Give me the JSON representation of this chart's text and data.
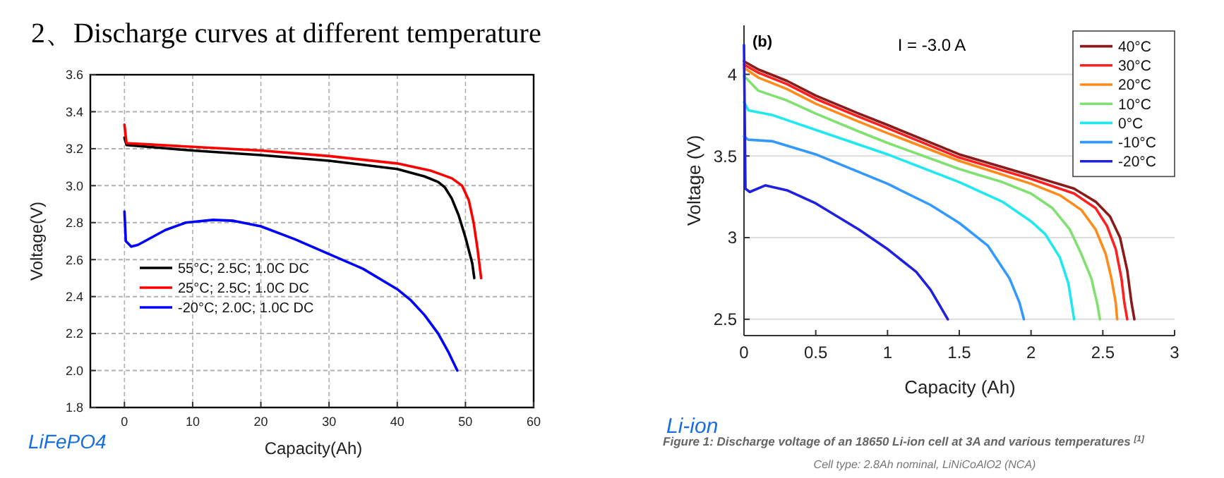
{
  "chart_data": [
    {
      "type": "line",
      "title": "2、Discharge curves at different temperature",
      "xlabel": "Capacity(Ah)",
      "ylabel": "Voltage(V)",
      "xlim": [
        -5,
        60
      ],
      "xticks": [
        0,
        10,
        20,
        30,
        40,
        50,
        60
      ],
      "ylim": [
        1.8,
        3.6
      ],
      "yticks": [
        {
          "value": 1.8,
          "label": "1.8"
        },
        {
          "value": 2,
          "label": "2.0"
        },
        {
          "value": 2.2,
          "label": "2.2"
        },
        {
          "value": 2.4,
          "label": "2.4"
        },
        {
          "value": 2.6,
          "label": "2.6"
        },
        {
          "value": 2.8,
          "label": "2.8"
        },
        {
          "value": 3,
          "label": "3.0"
        },
        {
          "value": 3.2,
          "label": "3.2"
        },
        {
          "value": 3.4,
          "label": "3.4"
        },
        {
          "value": 3.6,
          "label": "3.6"
        }
      ],
      "grid": true,
      "legend": "bottom left",
      "annotations": [
        "LiFePO4"
      ],
      "series": [
        {
          "name": "55°C; 2.5C; 1.0C DC",
          "color": "#000000",
          "x": [
            0,
            0.3,
            5,
            10,
            20,
            30,
            40,
            44,
            46,
            47,
            48,
            49,
            50,
            51,
            51.3
          ],
          "values": [
            3.26,
            3.22,
            3.205,
            3.19,
            3.165,
            3.135,
            3.09,
            3.05,
            3.02,
            2.99,
            2.93,
            2.84,
            2.72,
            2.58,
            2.5
          ]
        },
        {
          "name": "25°C; 2.5C; 1.0C DC",
          "color": "#ff0000",
          "x": [
            0,
            0.3,
            5,
            10,
            20,
            30,
            40,
            45,
            48,
            49.5,
            50.5,
            51.2,
            51.8,
            52.3
          ],
          "values": [
            3.33,
            3.23,
            3.22,
            3.21,
            3.19,
            3.16,
            3.12,
            3.08,
            3.04,
            3.0,
            2.92,
            2.8,
            2.65,
            2.5
          ]
        },
        {
          "name": "-20°C; 2.0C; 1.0C DC",
          "color": "#0000ff",
          "x": [
            0,
            0.2,
            1,
            2,
            4,
            6,
            9,
            13,
            16,
            20,
            25,
            30,
            35,
            40,
            42,
            44,
            46,
            47.5,
            48.8
          ],
          "values": [
            2.86,
            2.7,
            2.67,
            2.68,
            2.72,
            2.76,
            2.8,
            2.815,
            2.81,
            2.78,
            2.71,
            2.63,
            2.55,
            2.44,
            2.38,
            2.3,
            2.2,
            2.1,
            2.0
          ]
        }
      ]
    },
    {
      "type": "line",
      "title": "I = -3.0 A",
      "xlabel": "Capacity (Ah)",
      "ylabel": "Voltage (V)",
      "xlim": [
        0,
        3
      ],
      "xticks": [
        0,
        0.5,
        1,
        1.5,
        2,
        2.5,
        3
      ],
      "ylim": [
        2.4,
        4.3
      ],
      "yticks": [
        2.5,
        3,
        3.5,
        4
      ],
      "grid": "y",
      "legend": "top right",
      "annotations": [
        "(b)",
        "Li-ion",
        "Figure 1: Discharge voltage of an 18650 Li-ion cell at 3A and various temperatures $^{[1]}$",
        "Cell type: 2.8Ah nominal, LiNiCoAlO2 (NCA)"
      ],
      "series": [
        {
          "name": "40°C",
          "color": "#8b1a1a",
          "x": [
            0,
            0.1,
            0.3,
            0.5,
            0.8,
            1,
            1.5,
            2,
            2.3,
            2.45,
            2.55,
            2.62,
            2.67,
            2.7,
            2.72
          ],
          "values": [
            4.08,
            4.03,
            3.96,
            3.87,
            3.76,
            3.69,
            3.51,
            3.38,
            3.3,
            3.22,
            3.13,
            3.0,
            2.8,
            2.6,
            2.5
          ]
        },
        {
          "name": "30°C",
          "color": "#ff2020",
          "x": [
            0,
            0.1,
            0.3,
            0.5,
            0.8,
            1,
            1.5,
            2,
            2.3,
            2.45,
            2.53,
            2.59,
            2.63,
            2.65,
            2.67
          ],
          "values": [
            4.06,
            4.01,
            3.94,
            3.85,
            3.74,
            3.67,
            3.49,
            3.36,
            3.27,
            3.18,
            3.07,
            2.93,
            2.75,
            2.6,
            2.5
          ]
        },
        {
          "name": "20°C",
          "color": "#ff8c1a",
          "x": [
            0,
            0.1,
            0.3,
            0.5,
            0.8,
            1,
            1.5,
            2,
            2.2,
            2.35,
            2.45,
            2.52,
            2.56,
            2.59,
            2.6
          ],
          "values": [
            4.04,
            3.98,
            3.91,
            3.82,
            3.71,
            3.64,
            3.47,
            3.33,
            3.26,
            3.17,
            3.05,
            2.9,
            2.75,
            2.6,
            2.5
          ]
        },
        {
          "name": "10°C",
          "color": "#80e070",
          "x": [
            0,
            0.1,
            0.3,
            0.5,
            0.8,
            1,
            1.5,
            1.8,
            2,
            2.15,
            2.27,
            2.35,
            2.42,
            2.46,
            2.48
          ],
          "values": [
            3.99,
            3.9,
            3.84,
            3.76,
            3.65,
            3.58,
            3.42,
            3.34,
            3.27,
            3.18,
            3.05,
            2.9,
            2.75,
            2.6,
            2.5
          ]
        },
        {
          "name": "0°C",
          "color": "#20e8f0",
          "x": [
            0,
            0.03,
            0.2,
            0.5,
            1,
            1.5,
            1.8,
            2,
            2.1,
            2.2,
            2.26,
            2.3
          ],
          "values": [
            3.83,
            3.78,
            3.75,
            3.66,
            3.51,
            3.34,
            3.22,
            3.1,
            3.02,
            2.88,
            2.72,
            2.5
          ]
        },
        {
          "name": "-10°C",
          "color": "#3399ff",
          "x": [
            0,
            0.03,
            0.2,
            0.5,
            1,
            1.3,
            1.5,
            1.7,
            1.85,
            1.92,
            1.95
          ],
          "values": [
            3.62,
            3.6,
            3.59,
            3.51,
            3.33,
            3.2,
            3.09,
            2.95,
            2.75,
            2.6,
            2.5
          ]
        },
        {
          "name": "-20°C",
          "color": "#2020e0",
          "x": [
            0,
            0.01,
            0.04,
            0.15,
            0.3,
            0.5,
            0.8,
            1,
            1.2,
            1.3,
            1.42
          ],
          "values": [
            4.18,
            3.3,
            3.28,
            3.32,
            3.29,
            3.21,
            3.05,
            2.93,
            2.79,
            2.68,
            2.5
          ]
        }
      ]
    }
  ]
}
